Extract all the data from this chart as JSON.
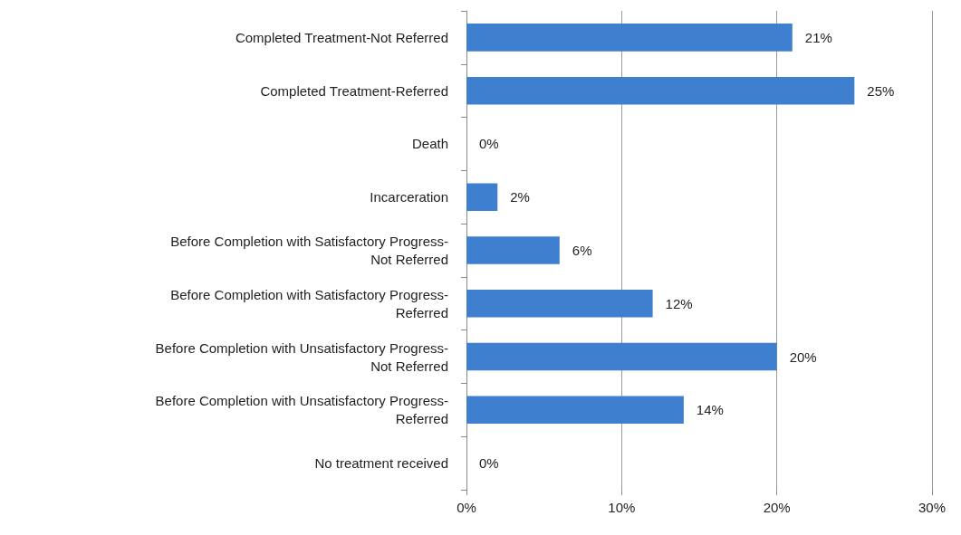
{
  "chart_data": {
    "type": "bar",
    "orientation": "horizontal",
    "categories": [
      "Completed Treatment-Not Referred",
      "Completed Treatment-Referred",
      "Death",
      "Incarceration",
      "Before Completion with Satisfactory Progress-Not Referred",
      "Before Completion with Satisfactory Progress-Referred",
      "Before Completion with Unsatisfactory Progress-Not Referred",
      "Before Completion with Unsatisfactory Progress-Referred",
      "No treatment received"
    ],
    "values": [
      21,
      25,
      0,
      2,
      6,
      12,
      20,
      14,
      0
    ],
    "value_labels": [
      "21%",
      "25%",
      "0%",
      "2%",
      "6%",
      "12%",
      "20%",
      "14%",
      "0%"
    ],
    "color": "#3f7fcf",
    "xlim": [
      0,
      30
    ],
    "xticks": [
      {
        "value": 0,
        "label": "0%"
      },
      {
        "value": 10,
        "label": "10%"
      },
      {
        "value": 20,
        "label": "20%"
      },
      {
        "value": 30,
        "label": "30%"
      }
    ],
    "grid": "x"
  }
}
